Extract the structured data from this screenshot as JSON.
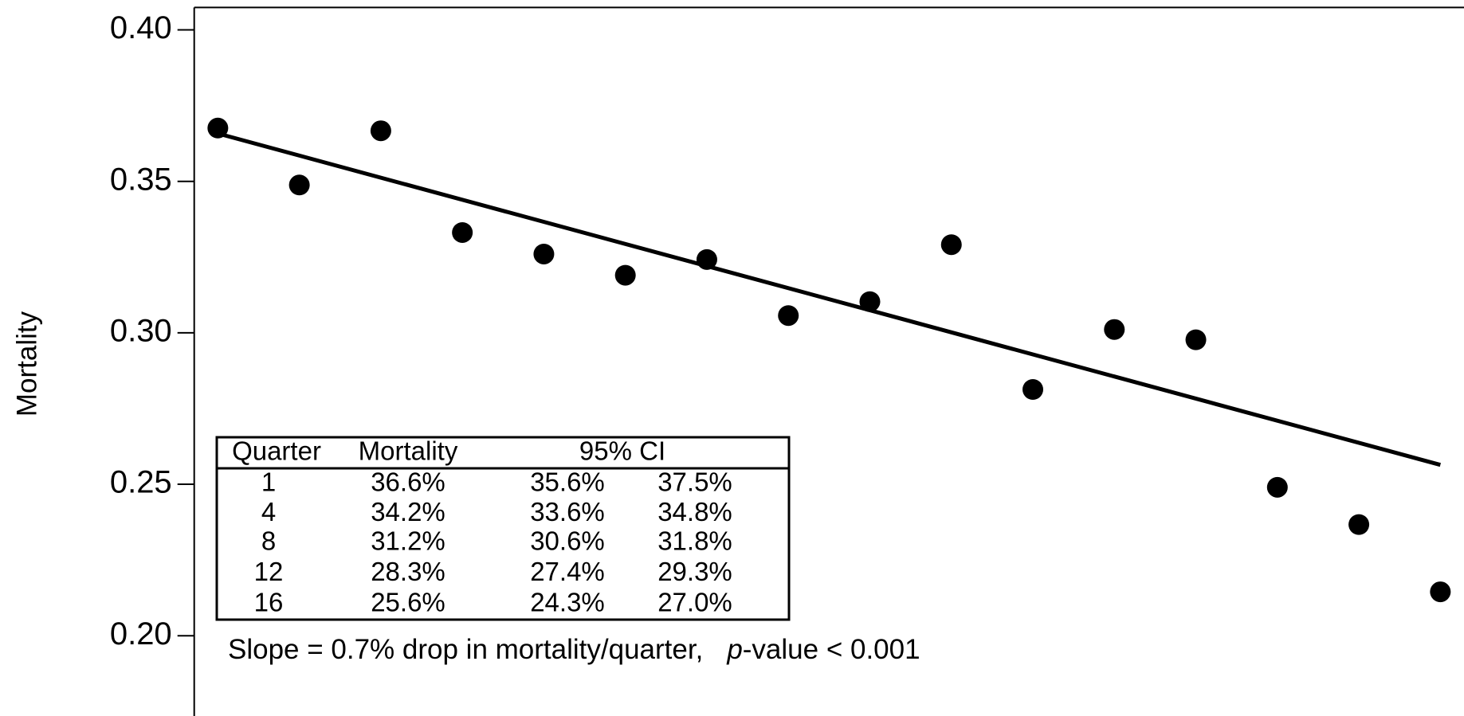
{
  "chart_data": {
    "type": "scatter",
    "y_label": "Mortality",
    "x": [
      1,
      2,
      3,
      4,
      5,
      6,
      7,
      8,
      9,
      10,
      11,
      12,
      13,
      14,
      15,
      16
    ],
    "values": [
      0.3676,
      0.3488,
      0.3667,
      0.3331,
      0.326,
      0.319,
      0.3242,
      0.3057,
      0.3103,
      0.3291,
      0.2813,
      0.3011,
      0.2977,
      0.249,
      0.2367,
      0.2145
    ],
    "color": "#000000",
    "trend": {
      "x": [
        1,
        16
      ],
      "values": [
        0.3658,
        0.2564
      ],
      "color": "#000000"
    },
    "xlim": [
      0.71,
      16.29
    ],
    "ylim": [
      0.1735,
      0.4074
    ],
    "yticks": [
      {
        "value": 0.2,
        "label": "0.20"
      },
      0.25,
      {
        "value": 0.3,
        "label": "0.30"
      },
      0.35,
      {
        "value": 0.4,
        "label": "0.40"
      }
    ],
    "table": {
      "header": [
        "Quarter",
        "Mortality",
        "95% CI"
      ],
      "rows": [
        [
          "1",
          "36.6%",
          "35.6%",
          "37.5%"
        ],
        [
          "4",
          "34.2%",
          "33.6%",
          "34.8%"
        ],
        [
          "8",
          "31.2%",
          "30.6%",
          "31.8%"
        ],
        [
          "12",
          "28.3%",
          "27.4%",
          "29.3%"
        ],
        [
          "16",
          "25.6%",
          "24.3%",
          "27.0%"
        ]
      ]
    },
    "annotation": [
      "Slope = 0.7% drop in mortality/quarter,",
      "p",
      "-value < 0.001"
    ]
  }
}
